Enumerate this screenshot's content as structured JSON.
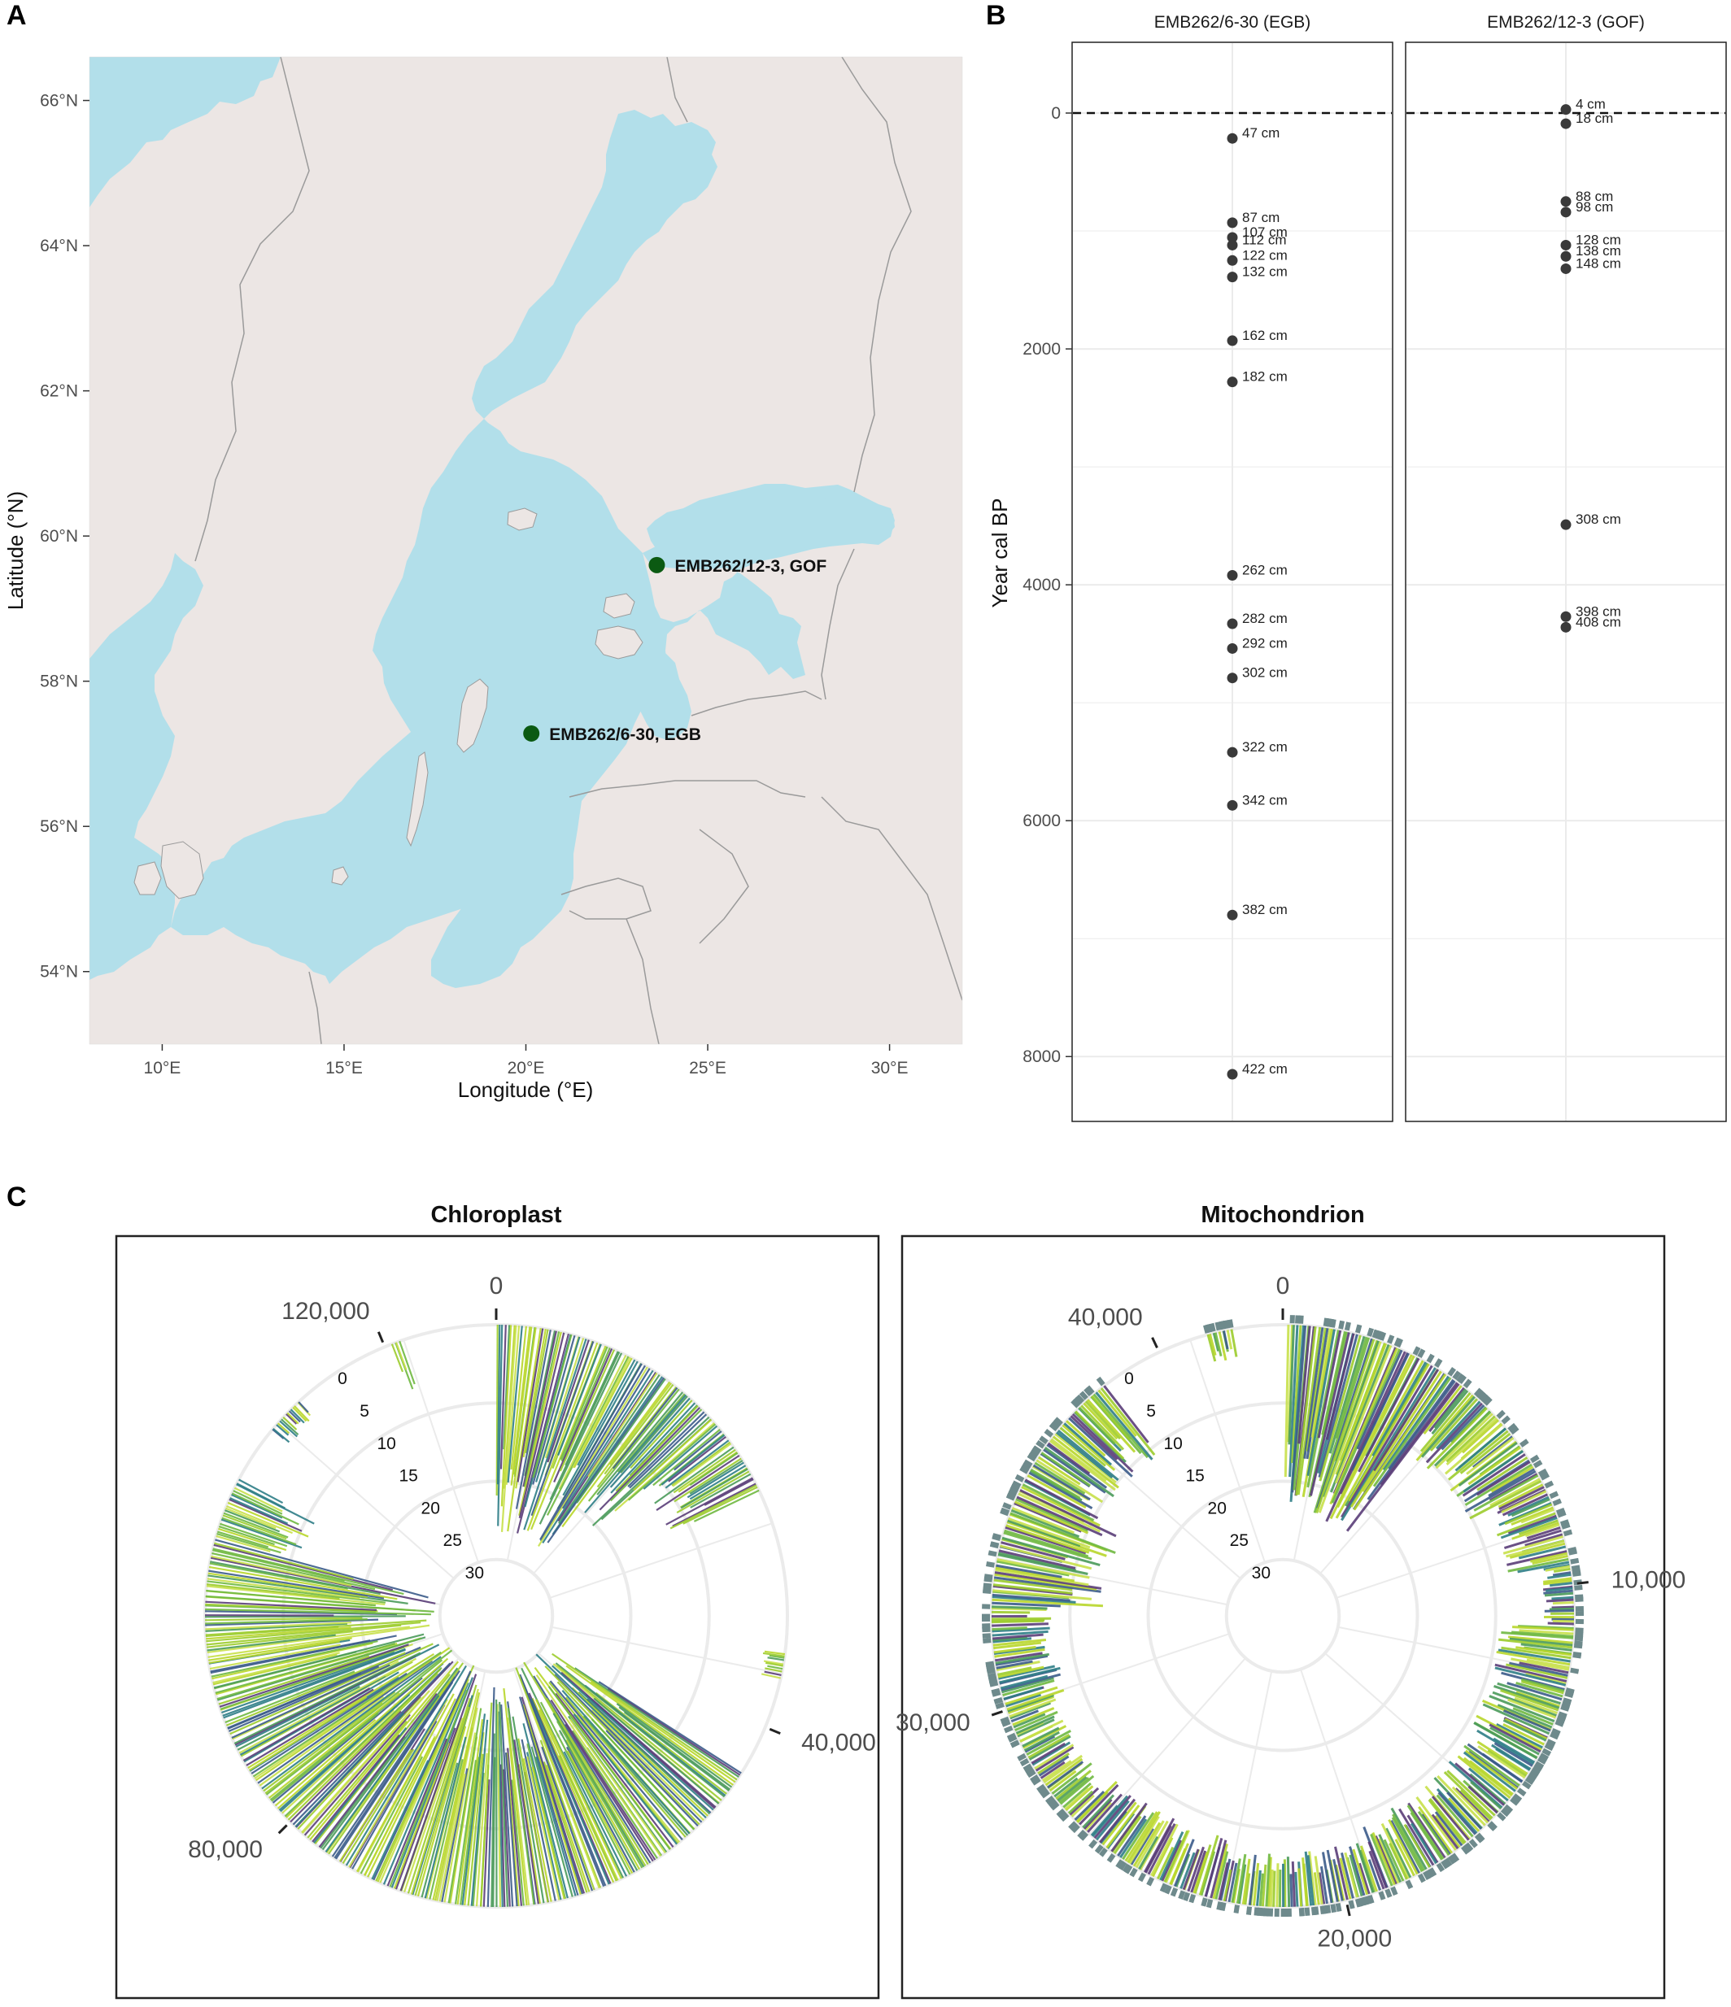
{
  "panels": {
    "a": "A",
    "b": "B",
    "c": "C"
  },
  "colors": {
    "sea": "#b2dfea",
    "land": "#ece6e4",
    "border": "#9a9a9a",
    "site": "#0b5a12",
    "point": "#3a3a3a",
    "grid": "#ebebeb",
    "bar_palette": [
      "#9ccc2c",
      "#b8d62a",
      "#6fb840",
      "#4a9a5a",
      "#2e7d86",
      "#3b5b8a",
      "#5a3d78",
      "#c8e04a"
    ]
  },
  "chart_data": [
    {
      "panel": "A",
      "type": "scatter",
      "subtype": "map",
      "xlabel": "Longitude (°E)",
      "ylabel": "Latitude (°N)",
      "xlim": [
        8,
        32
      ],
      "ylim": [
        53,
        66.6
      ],
      "x_ticks": [
        10,
        15,
        20,
        25,
        30
      ],
      "x_tick_labels": [
        "10°E",
        "15°E",
        "20°E",
        "25°E",
        "30°E"
      ],
      "y_ticks": [
        54,
        56,
        58,
        60,
        62,
        64,
        66
      ],
      "y_tick_labels": [
        "54°N",
        "56°N",
        "58°N",
        "60°N",
        "62°N",
        "64°N",
        "66°N"
      ],
      "points": [
        {
          "lon": 23.6,
          "lat": 59.6,
          "label": "EMB262/12-3, GOF"
        },
        {
          "lon": 20.15,
          "lat": 57.28,
          "label": "EMB262/6-30, EGB"
        }
      ]
    },
    {
      "panel": "B",
      "type": "scatter",
      "ylabel": "Year cal BP",
      "ylim": [
        -600,
        8550
      ],
      "y_reversed": true,
      "y_ticks": [
        0,
        2000,
        4000,
        6000,
        8000
      ],
      "y_tick_labels": [
        "0",
        "2000",
        "4000",
        "6000",
        "8000"
      ],
      "reference_line": 0,
      "facets": [
        {
          "name": "EMB262/6-30 (EGB)",
          "points": [
            {
              "depth": "47 cm",
              "year": 215
            },
            {
              "depth": "87 cm",
              "year": 930
            },
            {
              "depth": "107 cm",
              "year": 1055
            },
            {
              "depth": "112 cm",
              "year": 1120
            },
            {
              "depth": "122 cm",
              "year": 1250
            },
            {
              "depth": "132 cm",
              "year": 1390
            },
            {
              "depth": "162 cm",
              "year": 1930
            },
            {
              "depth": "182 cm",
              "year": 2280
            },
            {
              "depth": "262 cm",
              "year": 3920
            },
            {
              "depth": "282 cm",
              "year": 4330
            },
            {
              "depth": "292 cm",
              "year": 4540
            },
            {
              "depth": "302 cm",
              "year": 4790
            },
            {
              "depth": "322 cm",
              "year": 5420
            },
            {
              "depth": "342 cm",
              "year": 5870
            },
            {
              "depth": "382 cm",
              "year": 6800
            },
            {
              "depth": "422 cm",
              "year": 8150
            }
          ]
        },
        {
          "name": "EMB262/12-3 (GOF)",
          "points": [
            {
              "depth": "4 cm",
              "year": -30
            },
            {
              "depth": "18 cm",
              "year": 90
            },
            {
              "depth": "88 cm",
              "year": 750
            },
            {
              "depth": "98 cm",
              "year": 840
            },
            {
              "depth": "128 cm",
              "year": 1120
            },
            {
              "depth": "138 cm",
              "year": 1215
            },
            {
              "depth": "148 cm",
              "year": 1320
            },
            {
              "depth": "308 cm",
              "year": 3490
            },
            {
              "depth": "398 cm",
              "year": 4270
            },
            {
              "depth": "408 cm",
              "year": 4360
            }
          ]
        }
      ]
    },
    {
      "panel": "C",
      "type": "bar",
      "subtype": "circular",
      "plots": [
        {
          "title": "Chloroplast",
          "genome_length": 128000,
          "position_ticks": [
            0,
            40000,
            80000,
            120000
          ],
          "position_tick_labels": [
            "0",
            "40,000",
            "80,000",
            "120,000"
          ],
          "radial_ticks": [
            0,
            5,
            10,
            15,
            20,
            25,
            30
          ],
          "radial_tick_labels": [
            "0",
            "5",
            "10",
            "15",
            "20",
            "25",
            "30"
          ],
          "coverage_segments": [
            {
              "start": 0,
              "end": 13000,
              "level": 0.85
            },
            {
              "start": 13000,
              "end": 17500,
              "level": 0.65
            },
            {
              "start": 17500,
              "end": 23000,
              "level": 0.4
            },
            {
              "start": 34500,
              "end": 36500,
              "level": 0.1
            },
            {
              "start": 43500,
              "end": 57000,
              "level": 0.95
            },
            {
              "start": 57000,
              "end": 70000,
              "level": 0.9
            },
            {
              "start": 70000,
              "end": 84000,
              "level": 0.95
            },
            {
              "start": 84000,
              "end": 101500,
              "level": 0.92
            },
            {
              "start": 101500,
              "end": 106000,
              "level": 0.35
            },
            {
              "start": 110000,
              "end": 113000,
              "level": 0.1
            },
            {
              "start": 120500,
              "end": 121200,
              "level": 0.2
            }
          ]
        },
        {
          "title": "Mitochondrion",
          "genome_length": 43000,
          "position_ticks": [
            0,
            10000,
            20000,
            30000,
            40000
          ],
          "position_tick_labels": [
            "0",
            "10,000",
            "20,000",
            "30,000",
            "40,000"
          ],
          "radial_ticks": [
            0,
            5,
            10,
            15,
            20,
            25,
            30
          ],
          "radial_tick_labels": [
            "0",
            "5",
            "10",
            "15",
            "20",
            "25",
            "30"
          ],
          "coverage_segments": [
            {
              "start": 100,
              "end": 4500,
              "level": 0.75
            },
            {
              "start": 4500,
              "end": 7500,
              "level": 0.35
            },
            {
              "start": 7500,
              "end": 9500,
              "level": 0.25
            },
            {
              "start": 9500,
              "end": 11000,
              "level": 0.12
            },
            {
              "start": 11000,
              "end": 14500,
              "level": 0.3
            },
            {
              "start": 14500,
              "end": 19000,
              "level": 0.28
            },
            {
              "start": 19000,
              "end": 23000,
              "level": 0.22
            },
            {
              "start": 23000,
              "end": 27000,
              "level": 0.25
            },
            {
              "start": 27000,
              "end": 30000,
              "level": 0.2
            },
            {
              "start": 30000,
              "end": 32500,
              "level": 0.25
            },
            {
              "start": 32500,
              "end": 35500,
              "level": 0.45
            },
            {
              "start": 35500,
              "end": 38500,
              "level": 0.35
            },
            {
              "start": 41200,
              "end": 41800,
              "level": 0.12
            }
          ]
        }
      ]
    }
  ]
}
